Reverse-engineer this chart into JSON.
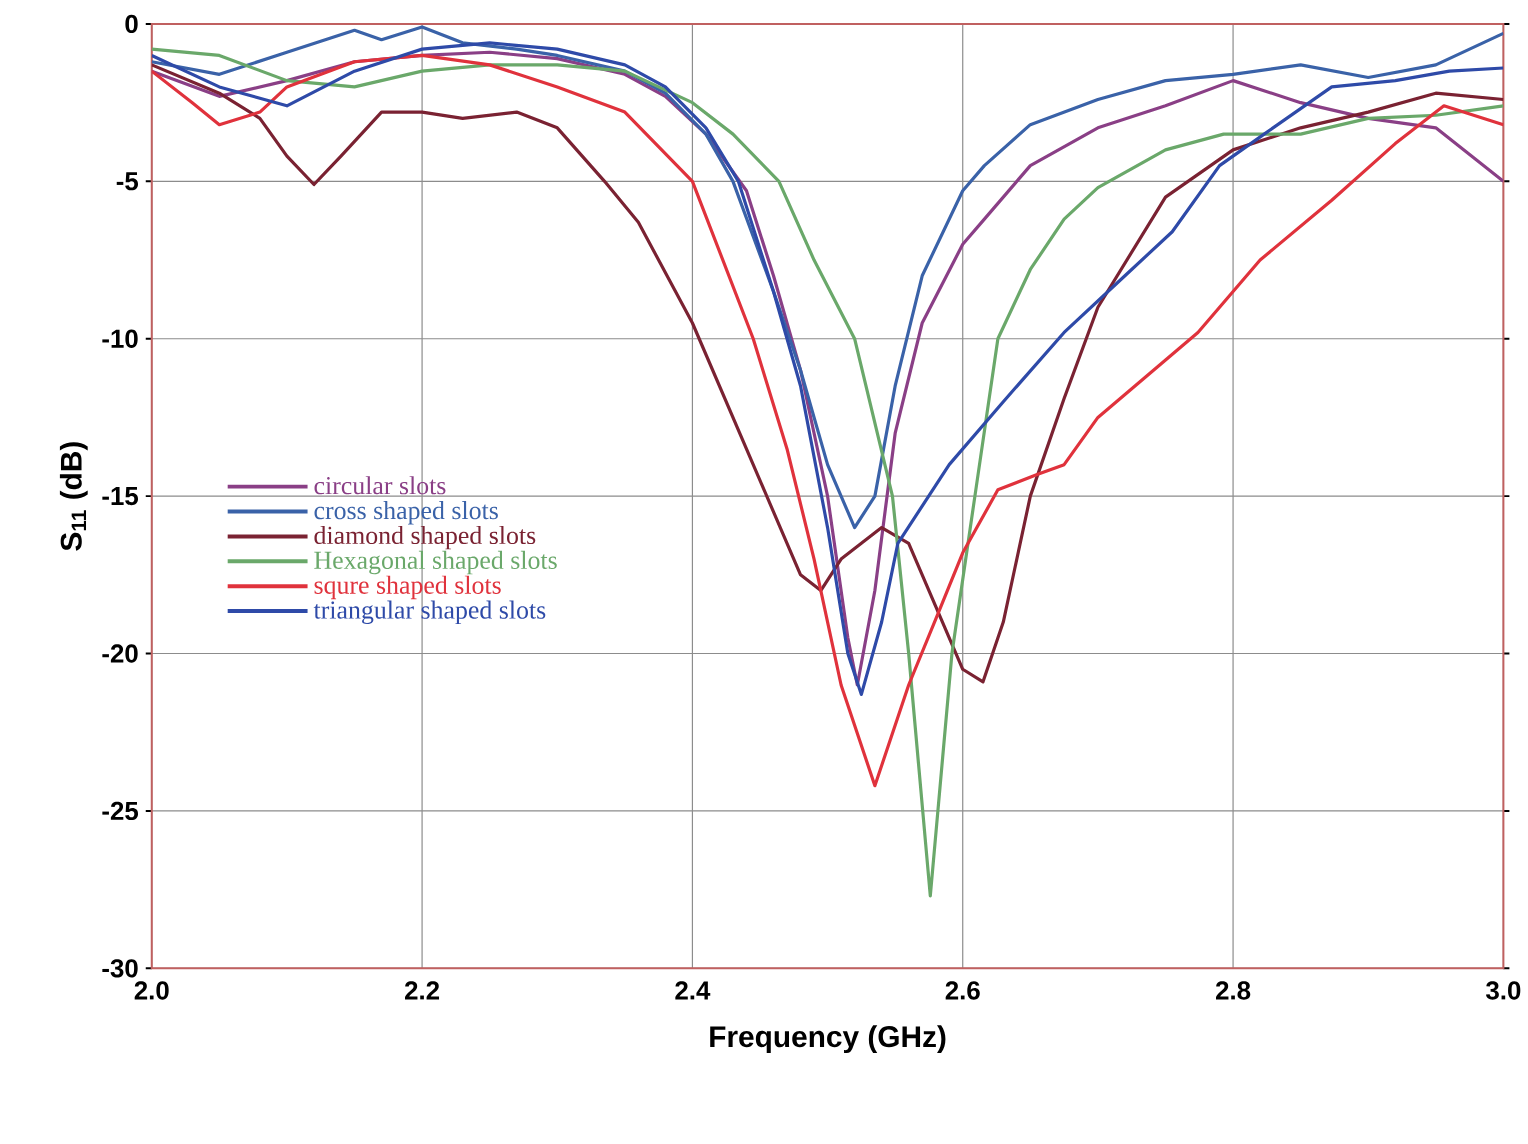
{
  "chart_data": {
    "type": "line",
    "xlabel": "Frequency (GHz)",
    "ylabel": "S$_{11}$ (dB)",
    "xlim": [
      2.0,
      3.0
    ],
    "ylim": [
      -30,
      0
    ],
    "xticks": [
      {
        "value": 2.0,
        "label": "2.0"
      },
      {
        "value": 2.2,
        "label": "2.2"
      },
      {
        "value": 2.4,
        "label": "2.4"
      },
      {
        "value": 2.6,
        "label": "2.6"
      },
      {
        "value": 2.8,
        "label": "2.8"
      },
      {
        "value": 3.0,
        "label": "3.0"
      }
    ],
    "yticks": [
      -30,
      -25,
      -20,
      -15,
      -10,
      -5,
      0
    ],
    "grid": true,
    "legend": "left",
    "marker": "none",
    "line_style": "solid",
    "series": [
      {
        "name": "circular slots",
        "color": "#8a3f86",
        "x": [
          2.0,
          2.05,
          2.1,
          2.15,
          2.2,
          2.25,
          2.3,
          2.35,
          2.38,
          2.41,
          2.44,
          2.46,
          2.48,
          2.5,
          2.515,
          2.522,
          2.535,
          2.55,
          2.57,
          2.6,
          2.616,
          2.65,
          2.7,
          2.75,
          2.8,
          2.85,
          2.9,
          2.95,
          3.0
        ],
        "values": [
          -1.5,
          -2.3,
          -1.8,
          -1.2,
          -1.0,
          -0.9,
          -1.1,
          -1.6,
          -2.3,
          -3.5,
          -5.3,
          -8,
          -11,
          -15,
          -19.5,
          -21,
          -18,
          -13,
          -9.5,
          -7,
          -6.2,
          -4.5,
          -3.3,
          -2.6,
          -1.8,
          -2.5,
          -3.0,
          -3.3,
          -5.0
        ]
      },
      {
        "name": "cross shaped slots",
        "color": "#3a62a8",
        "x": [
          2.0,
          2.05,
          2.1,
          2.15,
          2.17,
          2.2,
          2.23,
          2.27,
          2.3,
          2.35,
          2.38,
          2.41,
          2.43,
          2.46,
          2.48,
          2.5,
          2.52,
          2.535,
          2.55,
          2.57,
          2.6,
          2.616,
          2.65,
          2.7,
          2.75,
          2.8,
          2.85,
          2.9,
          2.95,
          3.0
        ],
        "values": [
          -1.2,
          -1.6,
          -0.9,
          -0.2,
          -0.5,
          -0.1,
          -0.6,
          -0.8,
          -1.0,
          -1.5,
          -2.2,
          -3.5,
          -5,
          -8.5,
          -11,
          -14,
          -16,
          -15,
          -11.5,
          -8,
          -5.3,
          -4.5,
          -3.2,
          -2.4,
          -1.8,
          -1.6,
          -1.3,
          -1.7,
          -1.3,
          -0.3
        ]
      },
      {
        "name": "diamond shaped slots",
        "color": "#7a2232",
        "x": [
          2.0,
          2.05,
          2.08,
          2.1,
          2.12,
          2.14,
          2.17,
          2.2,
          2.23,
          2.27,
          2.3,
          2.335,
          2.36,
          2.4,
          2.43,
          2.46,
          2.48,
          2.495,
          2.51,
          2.54,
          2.56,
          2.58,
          2.6,
          2.615,
          2.63,
          2.65,
          2.675,
          2.7,
          2.75,
          2.8,
          2.85,
          2.9,
          2.95,
          3.0
        ],
        "values": [
          -1.3,
          -2.2,
          -3,
          -4.2,
          -5.1,
          -4.2,
          -2.8,
          -2.8,
          -3.0,
          -2.8,
          -3.3,
          -5.0,
          -6.3,
          -9.5,
          -12.5,
          -15.5,
          -17.5,
          -18,
          -17,
          -16,
          -16.5,
          -18.5,
          -20.5,
          -20.9,
          -19,
          -15,
          -11.9,
          -9,
          -5.5,
          -4,
          -3.3,
          -2.8,
          -2.2,
          -2.4
        ]
      },
      {
        "name": "Hexagonal shaped slots",
        "color": "#6aa86a",
        "x": [
          2.0,
          2.05,
          2.1,
          2.15,
          2.2,
          2.25,
          2.3,
          2.35,
          2.4,
          2.43,
          2.464,
          2.49,
          2.52,
          2.548,
          2.56,
          2.576,
          2.592,
          2.609,
          2.626,
          2.65,
          2.675,
          2.7,
          2.75,
          2.793,
          2.85,
          2.9,
          2.95,
          3.0
        ],
        "values": [
          -0.8,
          -1.0,
          -1.8,
          -2.0,
          -1.5,
          -1.3,
          -1.3,
          -1.5,
          -2.5,
          -3.5,
          -5,
          -7.5,
          -10,
          -15,
          -20,
          -27.7,
          -20,
          -15,
          -10,
          -7.8,
          -6.2,
          -5.2,
          -4.0,
          -3.5,
          -3.5,
          -3.0,
          -2.9,
          -2.6
        ]
      },
      {
        "name": "squre shaped slots",
        "color": "#e0323c",
        "x": [
          2.0,
          2.03,
          2.05,
          2.08,
          2.1,
          2.15,
          2.2,
          2.25,
          2.3,
          2.35,
          2.4,
          2.445,
          2.47,
          2.49,
          2.51,
          2.535,
          2.56,
          2.582,
          2.6,
          2.626,
          2.656,
          2.675,
          2.7,
          2.774,
          2.82,
          2.873,
          2.92,
          2.956,
          3.0
        ],
        "values": [
          -1.5,
          -2.5,
          -3.2,
          -2.8,
          -2.0,
          -1.2,
          -1.0,
          -1.3,
          -2.0,
          -2.8,
          -5,
          -10,
          -13.5,
          -17,
          -21,
          -24.2,
          -21,
          -18.7,
          -16.8,
          -14.8,
          -14.3,
          -14.0,
          -12.5,
          -9.8,
          -7.5,
          -5.6,
          -3.8,
          -2.6,
          -3.2
        ]
      },
      {
        "name": "triangular shaped slots",
        "color": "#2e4aa8",
        "x": [
          2.0,
          2.05,
          2.1,
          2.15,
          2.2,
          2.25,
          2.3,
          2.35,
          2.38,
          2.41,
          2.434,
          2.46,
          2.48,
          2.5,
          2.515,
          2.525,
          2.54,
          2.552,
          2.59,
          2.63,
          2.675,
          2.72,
          2.755,
          2.79,
          2.823,
          2.873,
          2.92,
          2.96,
          3.0
        ],
        "values": [
          -1.0,
          -2.0,
          -2.6,
          -1.5,
          -0.8,
          -0.6,
          -0.8,
          -1.3,
          -2.0,
          -3.3,
          -5,
          -8.5,
          -11.5,
          -16,
          -20,
          -21.3,
          -19,
          -16.5,
          -14,
          -12,
          -9.8,
          -8,
          -6.6,
          -4.5,
          -3.5,
          -2.0,
          -1.8,
          -1.5,
          -1.4
        ]
      }
    ]
  }
}
